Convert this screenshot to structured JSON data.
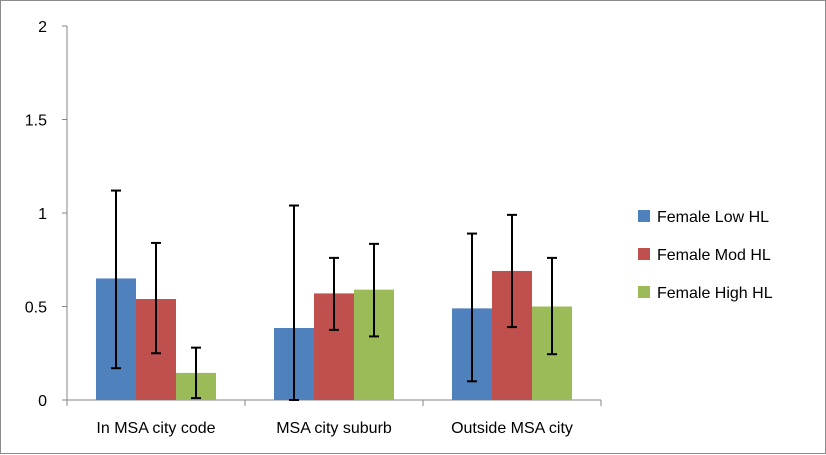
{
  "chart_data": {
    "type": "bar",
    "title": "",
    "xlabel": "",
    "ylabel": "",
    "ylim": [
      0,
      2
    ],
    "yticks": [
      "0",
      "0.5",
      "1",
      "1.5",
      "2"
    ],
    "ytick_values": [
      0,
      0.5,
      1,
      1.5,
      2
    ],
    "grid": false,
    "legend_position": "right",
    "categories": [
      "In MSA city code",
      "MSA city suburb",
      "Outside MSA city"
    ],
    "series": [
      {
        "name": "Female Low HL",
        "color": "#4F81BD",
        "values": [
          0.65,
          0.385,
          0.49
        ],
        "err_low": [
          0.17,
          0.0,
          0.1
        ],
        "err_high": [
          1.12,
          1.04,
          0.89
        ]
      },
      {
        "name": "Female Mod HL",
        "color": "#C0504D",
        "values": [
          0.54,
          0.57,
          0.69
        ],
        "err_low": [
          0.25,
          0.375,
          0.39
        ],
        "err_high": [
          0.84,
          0.76,
          0.99
        ]
      },
      {
        "name": "Female High HL",
        "color": "#9BBB59",
        "values": [
          0.145,
          0.59,
          0.5
        ],
        "err_low": [
          0.01,
          0.34,
          0.245
        ],
        "err_high": [
          0.28,
          0.835,
          0.76
        ]
      }
    ]
  }
}
